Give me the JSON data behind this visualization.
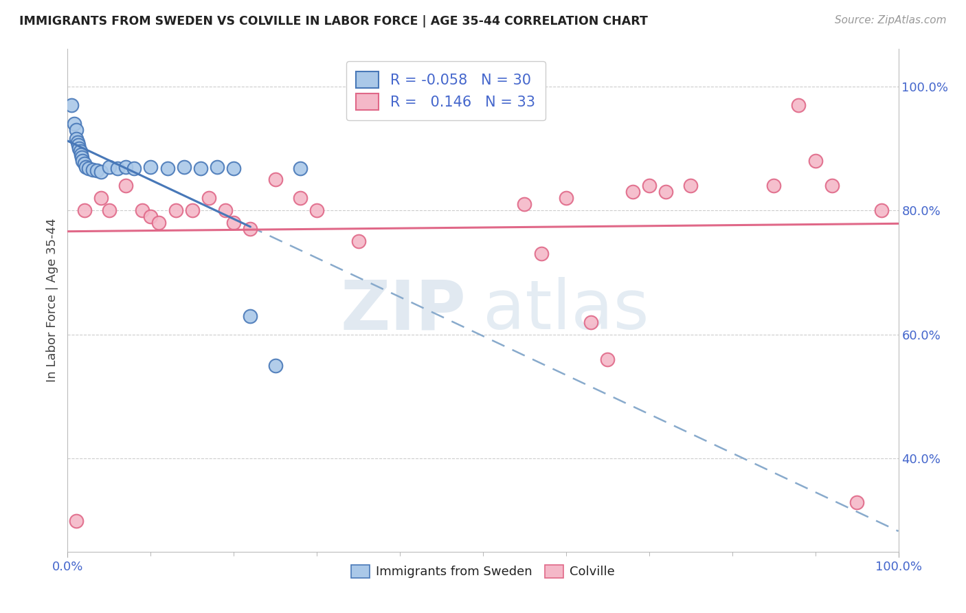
{
  "title": "IMMIGRANTS FROM SWEDEN VS COLVILLE IN LABOR FORCE | AGE 35-44 CORRELATION CHART",
  "source": "Source: ZipAtlas.com",
  "ylabel": "In Labor Force | Age 35-44",
  "xlim": [
    0.0,
    1.0
  ],
  "ylim": [
    0.25,
    1.06
  ],
  "ytick_values": [
    0.4,
    0.6,
    0.8,
    1.0
  ],
  "legend_blue_r": "-0.058",
  "legend_blue_n": "30",
  "legend_pink_r": "0.146",
  "legend_pink_n": "33",
  "legend_blue_label": "Immigrants from Sweden",
  "legend_pink_label": "Colville",
  "blue_face": "#aac8e8",
  "blue_edge": "#4878b8",
  "pink_face": "#f4b8c8",
  "pink_edge": "#e06888",
  "blue_line": "#4878b8",
  "blue_dash": "#88aacc",
  "pink_line": "#e06888",
  "watermark_zip": "ZIP",
  "watermark_atlas": "atlas",
  "bg": "#ffffff",
  "grid_color": "#cccccc",
  "tick_color": "#4466cc",
  "blue_scatter_x": [
    0.005,
    0.008,
    0.01,
    0.01,
    0.012,
    0.013,
    0.014,
    0.015,
    0.016,
    0.017,
    0.018,
    0.02,
    0.022,
    0.025,
    0.03,
    0.035,
    0.04,
    0.05,
    0.06,
    0.07,
    0.08,
    0.1,
    0.12,
    0.14,
    0.16,
    0.18,
    0.2,
    0.22,
    0.25,
    0.28
  ],
  "blue_scatter_y": [
    0.97,
    0.94,
    0.93,
    0.915,
    0.91,
    0.905,
    0.9,
    0.895,
    0.89,
    0.885,
    0.88,
    0.875,
    0.87,
    0.868,
    0.866,
    0.864,
    0.862,
    0.87,
    0.868,
    0.87,
    0.868,
    0.87,
    0.868,
    0.87,
    0.868,
    0.87,
    0.868,
    0.63,
    0.55,
    0.868
  ],
  "pink_scatter_x": [
    0.01,
    0.02,
    0.04,
    0.05,
    0.07,
    0.09,
    0.1,
    0.11,
    0.13,
    0.15,
    0.17,
    0.19,
    0.2,
    0.22,
    0.25,
    0.28,
    0.3,
    0.35,
    0.55,
    0.57,
    0.6,
    0.63,
    0.65,
    0.68,
    0.7,
    0.72,
    0.75,
    0.85,
    0.88,
    0.9,
    0.92,
    0.95,
    0.98
  ],
  "pink_scatter_y": [
    0.3,
    0.8,
    0.82,
    0.8,
    0.84,
    0.8,
    0.79,
    0.78,
    0.8,
    0.8,
    0.82,
    0.8,
    0.78,
    0.77,
    0.85,
    0.82,
    0.8,
    0.75,
    0.81,
    0.73,
    0.82,
    0.62,
    0.56,
    0.83,
    0.84,
    0.83,
    0.84,
    0.84,
    0.97,
    0.88,
    0.84,
    0.33,
    0.8
  ]
}
